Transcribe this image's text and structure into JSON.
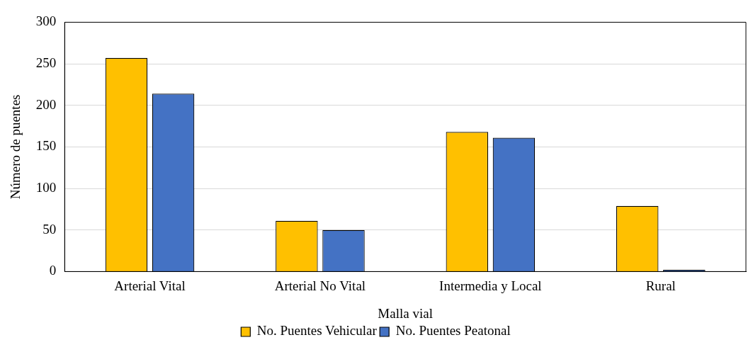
{
  "chart_data": {
    "type": "bar",
    "xlabel": "Malla vial",
    "ylabel": "Número de puentes",
    "categories": [
      "Arterial Vital",
      "Arterial No Vital",
      "Intermedia y Local",
      "Rural"
    ],
    "series": [
      {
        "name": "No. Puentes Vehicular",
        "color": "#ffc000",
        "values": [
          257,
          61,
          168,
          79
        ]
      },
      {
        "name": "No. Puentes Peatonal",
        "color": "#4472c4",
        "values": [
          214,
          50,
          161,
          2
        ]
      }
    ],
    "ylim": [
      0,
      300
    ],
    "yticks": [
      0,
      50,
      100,
      150,
      200,
      250,
      300
    ],
    "grid": "y",
    "legend": "bottom"
  }
}
